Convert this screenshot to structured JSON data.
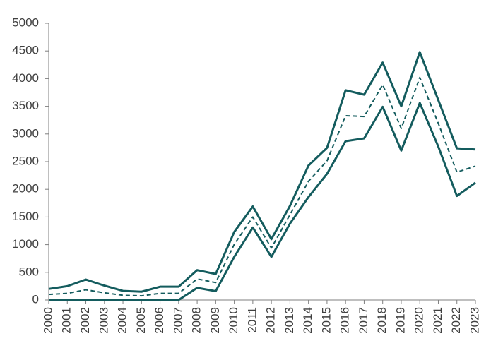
{
  "chart_data": {
    "type": "line",
    "categories": [
      "2000",
      "2001",
      "2002",
      "2003",
      "2004",
      "2005",
      "2006",
      "2007",
      "2008",
      "2009",
      "2010",
      "2011",
      "2012",
      "2013",
      "2014",
      "2015",
      "2016",
      "2017",
      "2018",
      "2019",
      "2020",
      "2021",
      "2022",
      "2023"
    ],
    "series": [
      {
        "color": "#145c5e",
        "dash": false,
        "values": [
          200,
          250,
          370,
          260,
          165,
          150,
          240,
          240,
          540,
          470,
          1230,
          1690,
          1100,
          1700,
          2430,
          2750,
          3790,
          3710,
          4290,
          3500,
          4480,
          3610,
          2740,
          2720
        ]
      },
      {
        "color": "#145c5e",
        "dash": true,
        "values": [
          100,
          120,
          185,
          130,
          85,
          75,
          120,
          120,
          380,
          315,
          1005,
          1500,
          940,
          1540,
          2145,
          2515,
          3330,
          3315,
          3890,
          3100,
          4020,
          3190,
          2310,
          2420
        ]
      },
      {
        "color": "#145c5e",
        "dash": false,
        "values": [
          0,
          0,
          0,
          0,
          0,
          0,
          0,
          0,
          220,
          160,
          780,
          1310,
          780,
          1380,
          1860,
          2280,
          2870,
          2920,
          3490,
          2700,
          3560,
          2770,
          1880,
          2120
        ]
      }
    ],
    "ylim": [
      0,
      5000
    ],
    "yticks": [
      0,
      500,
      1000,
      1500,
      2000,
      2500,
      3000,
      3500,
      4000,
      4500,
      5000
    ],
    "grid": false
  }
}
